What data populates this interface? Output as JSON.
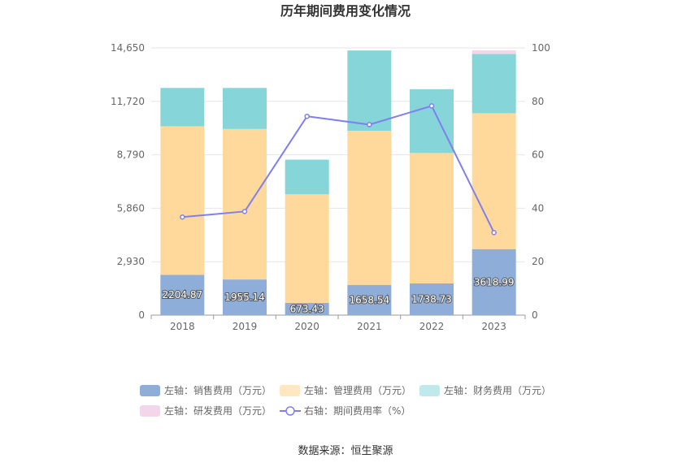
{
  "chart_data": {
    "type": "bar",
    "title": "历年期间费用变化情况",
    "categories": [
      "2018",
      "2019",
      "2020",
      "2021",
      "2022",
      "2023"
    ],
    "series": [
      {
        "name": "左轴：销售费用（万元）",
        "axis": "left",
        "color": "#8eadd9",
        "values": [
          2204.87,
          1955.14,
          673.43,
          1658.54,
          1738.73,
          3618.99
        ],
        "labels_shown": true
      },
      {
        "name": "左轴：管理费用（万元）",
        "axis": "left",
        "color": "#ffd99b",
        "values": [
          8150,
          8250,
          5950,
          8450,
          7150,
          7450
        ],
        "labels_shown": false
      },
      {
        "name": "左轴：财务费用（万元）",
        "axis": "left",
        "color": "#86d5d8",
        "values": [
          2100,
          2250,
          1900,
          4400,
          3500,
          3250
        ],
        "labels_shown": false
      },
      {
        "name": "左轴：研发费用（万元）",
        "axis": "left",
        "color": "#f3d6ea",
        "values": [
          0,
          0,
          0,
          0,
          0,
          200
        ],
        "labels_shown": false
      },
      {
        "name": "右轴：期间费用率（%）",
        "axis": "right",
        "type": "line",
        "color": "#7f7fef",
        "values": [
          36.7,
          38.8,
          74.4,
          71.3,
          78.3,
          30.9
        ]
      }
    ],
    "left_axis": {
      "min": 0,
      "max": 14650,
      "ticks": [
        "0",
        "2,930",
        "5,860",
        "8,790",
        "11,720",
        "14,650"
      ]
    },
    "right_axis": {
      "min": 0,
      "max": 100,
      "ticks": [
        "0",
        "20",
        "40",
        "60",
        "80",
        "100"
      ]
    },
    "legend_position": "bottom",
    "grid": true
  },
  "source": "数据来源：恒生聚源"
}
